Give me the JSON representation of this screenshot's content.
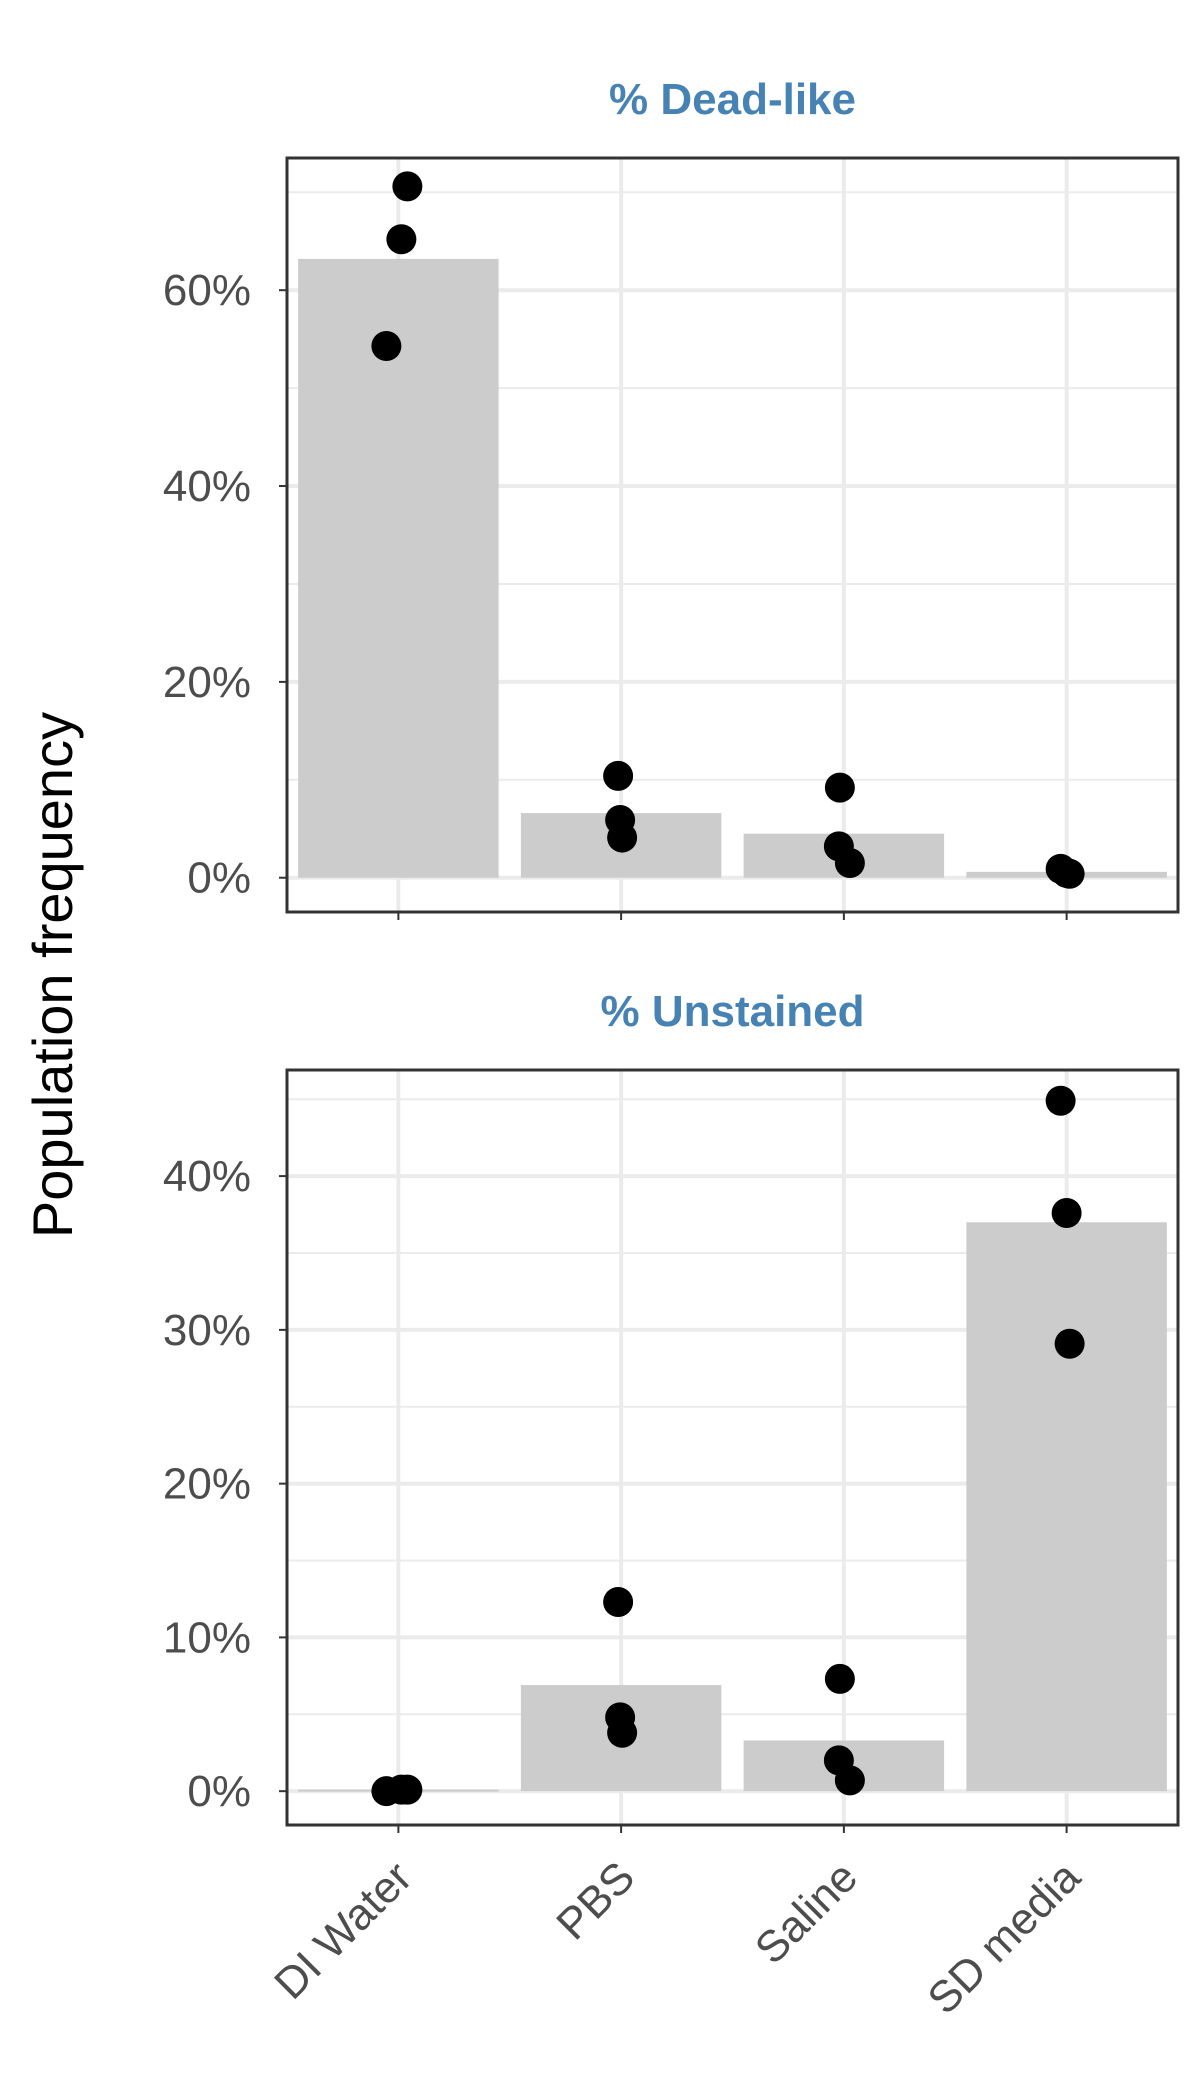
{
  "chart_data": {
    "type": "bar",
    "ylabel": "Population frequency",
    "categories": [
      "DI Water",
      "PBS",
      "Saline",
      "SD media"
    ],
    "colors": {
      "bar": "#cccccc",
      "point": "#000000",
      "facet_title": "#4682b4",
      "grid": "#ebebeb",
      "panel_border": "#333333",
      "tick_label": "#4d4d4d"
    },
    "grid": true,
    "legend": "none",
    "panels": [
      {
        "title": "% Dead-like",
        "ylim": [
          -3.5,
          73.5
        ],
        "y_ticks": [
          0,
          20,
          40,
          60
        ],
        "y_tick_labels": [
          "0%",
          "20%",
          "40%",
          "60%"
        ],
        "values": [
          63.2,
          6.6,
          4.5,
          0.6
        ],
        "points": [
          {
            "category": "DI Water",
            "values": [
              70.6,
              65.2,
              54.3
            ]
          },
          {
            "category": "PBS",
            "values": [
              10.4,
              5.9,
              4.1
            ]
          },
          {
            "category": "Saline",
            "values": [
              9.2,
              3.2,
              1.5
            ]
          },
          {
            "category": "SD media",
            "values": [
              0.9,
              0.5,
              0.4
            ]
          }
        ]
      },
      {
        "title": "% Unstained",
        "ylim": [
          -2.2,
          46.9
        ],
        "y_ticks": [
          0,
          10,
          20,
          30,
          40
        ],
        "y_tick_labels": [
          "0%",
          "10%",
          "20%",
          "30%",
          "40%"
        ],
        "values": [
          0.1,
          6.9,
          3.3,
          37.0
        ],
        "points": [
          {
            "category": "DI Water",
            "values": [
              0.1,
              0.1,
              0.0
            ]
          },
          {
            "category": "PBS",
            "values": [
              12.3,
              4.8,
              3.8
            ]
          },
          {
            "category": "Saline",
            "values": [
              7.3,
              2.0,
              0.7
            ]
          },
          {
            "category": "SD media",
            "values": [
              44.9,
              37.6,
              29.1
            ]
          }
        ]
      }
    ]
  }
}
